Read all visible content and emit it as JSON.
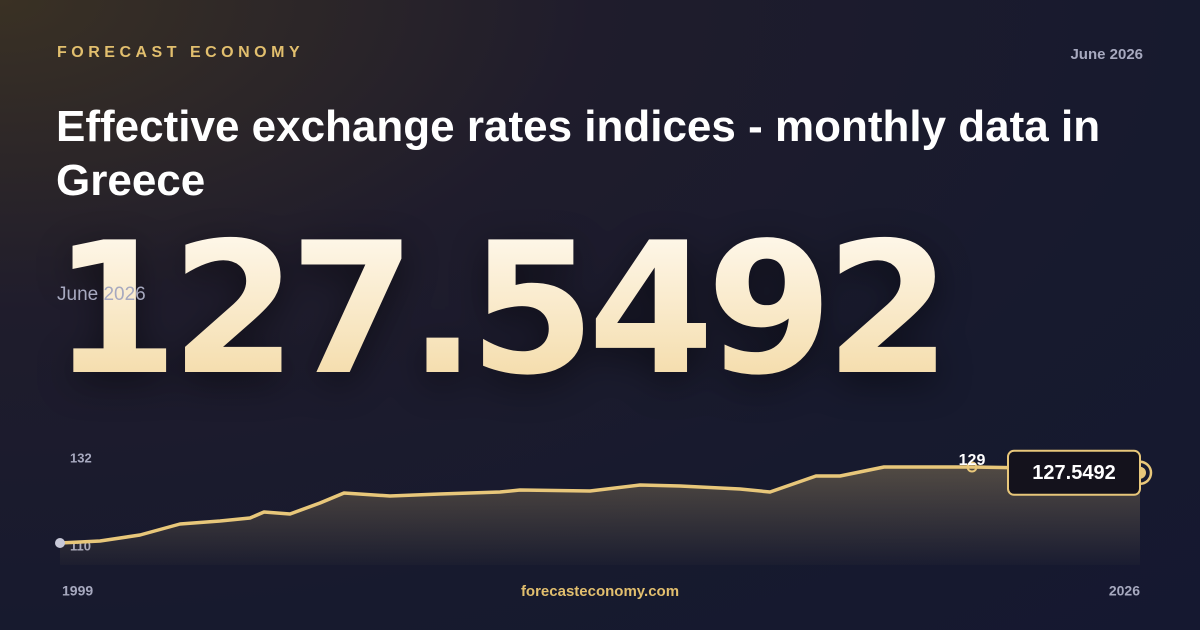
{
  "brand": "FORECAST ECONOMY",
  "date": "June 2026",
  "footer": "forecasteconomy.com",
  "chart_data": {
    "type": "line",
    "title": "Effective exchange rates indices - monthly data in Greece",
    "x": [
      1999,
      2000,
      2001,
      2002,
      2003,
      2003.75,
      2004.1,
      2004.75,
      2005.5,
      2006.1,
      2007.25,
      2008.5,
      2010,
      2010.5,
      2012.25,
      2013.5,
      2014.5,
      2016,
      2016.75,
      2017.9,
      2018.5,
      2019.6,
      2021.8,
      2023,
      2024,
      2026
    ],
    "values": [
      110,
      110.5,
      112,
      114.75,
      115.5,
      116.25,
      117.75,
      117.25,
      120,
      122.5,
      121.75,
      122.25,
      122.75,
      123.25,
      123,
      124.5,
      124.25,
      123.5,
      122.75,
      126.75,
      126.75,
      129,
      129,
      128.8,
      129,
      127.5492
    ],
    "color": "#e8c77a",
    "xlim": [
      1999,
      2026
    ],
    "xticks": [
      1999,
      2026
    ],
    "ylim": [
      104.5,
      134
    ],
    "yticks": [
      110,
      132
    ],
    "grid": false,
    "annotations": [
      {
        "x": 2021.8,
        "value": 129
      }
    ]
  }
}
